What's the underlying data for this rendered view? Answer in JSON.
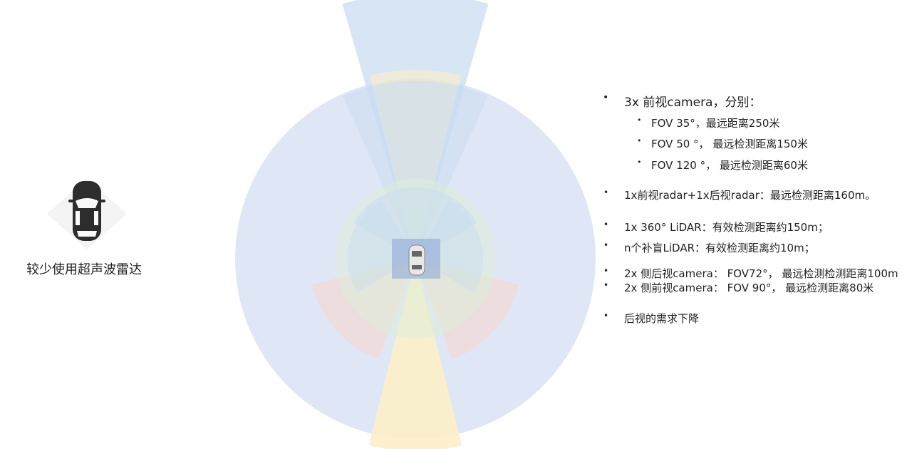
{
  "left": {
    "caption": "较少使用超声波雷达",
    "icon": "car-top-view-icon"
  },
  "info": {
    "cameras_heading": "3x 前视camera，分别：",
    "cameras": [
      "FOV 35°，最远距离250米",
      "FOV 50 °， 最远检测距离150米",
      "FOV 120 °， 最远检测距离60米"
    ],
    "radar": "1x前视radar+1x后视radar：最远检测距离160m。",
    "lidar": "1x 360° LiDAR：有效检测距离约150m；",
    "blind_lidar": "n个补盲LiDAR：有效检测距离约10m；",
    "side_rear_cam": "2x 侧后视camera： FOV72°， 最远检测检测距离100m",
    "side_front_cam": "2x 侧前视camera： FOV 90°， 最远检测距离80米",
    "rear_need": "后视的需求下降"
  },
  "colors": {
    "camera_blue": "#c9dcf0",
    "lidar_blue": "#d9e3f5",
    "radar_yellow": "#fdefc8",
    "side_rear_red": "#f2d9d6",
    "blind_green": "#dcecd8"
  }
}
